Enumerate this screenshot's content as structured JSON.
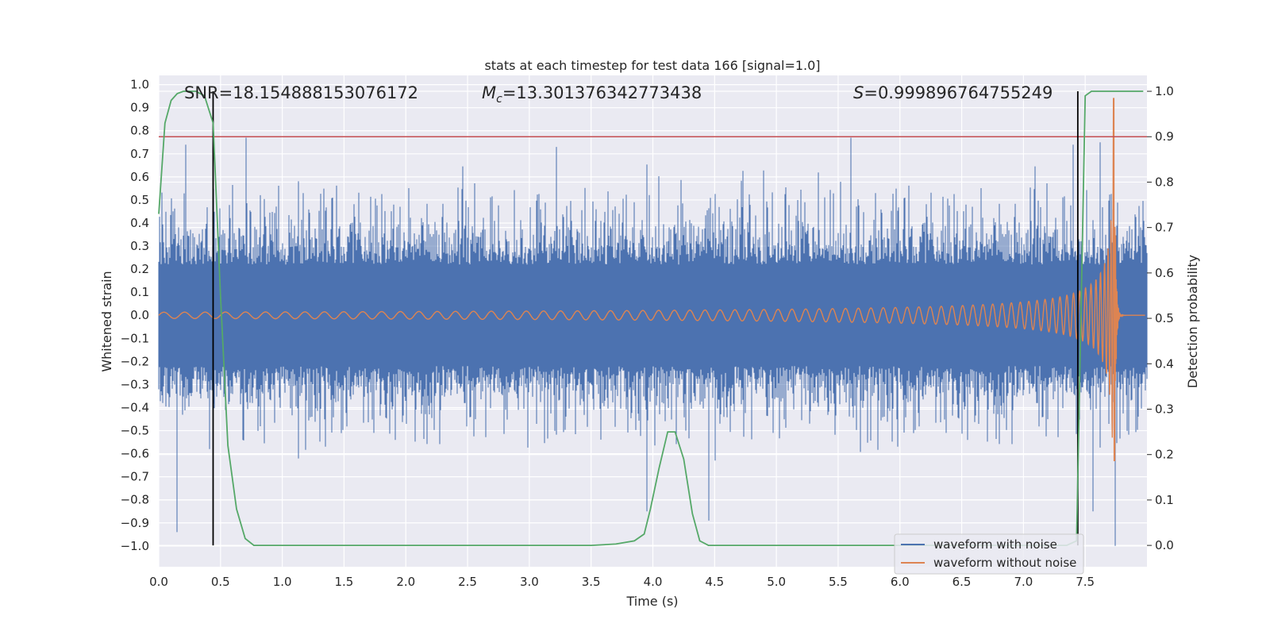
{
  "chart_data": {
    "type": "line",
    "title": "stats at each timestep for test data 166 [signal=1.0]",
    "xlabel": "Time (s)",
    "ylabel": "Whitened strain",
    "y2label": "Detection probability",
    "xlim": [
      0.0,
      8.0
    ],
    "ylim": [
      -1.09,
      1.04
    ],
    "y2lim": [
      -0.047,
      1.035
    ],
    "xticks": [
      "0.0",
      "0.5",
      "1.0",
      "1.5",
      "2.0",
      "2.5",
      "3.0",
      "3.5",
      "4.0",
      "4.5",
      "5.0",
      "5.5",
      "6.0",
      "6.5",
      "7.0",
      "7.5"
    ],
    "yticks": [
      "1.0",
      "0.9",
      "0.8",
      "0.7",
      "0.6",
      "0.5",
      "0.4",
      "0.3",
      "0.2",
      "0.1",
      "0.0",
      "-0.1",
      "-0.2",
      "-0.3",
      "-0.4",
      "-0.5",
      "-0.6",
      "-0.7",
      "-0.8",
      "-0.9",
      "-1.0"
    ],
    "y2ticks": [
      "1.0",
      "0.9",
      "0.8",
      "0.7",
      "0.6",
      "0.5",
      "0.4",
      "0.3",
      "0.2",
      "0.1",
      "0.0"
    ],
    "annotations": {
      "snr": "SNR=18.154888153076172",
      "mc_symbol": "M",
      "mc_sub": "c",
      "mc_value": "=13.301376342773438",
      "s_symbol": "S",
      "s_value": "=0.999896764755249"
    },
    "threshold_probability": 0.9,
    "detection_lines_x": [
      0.44,
      7.44
    ],
    "colors": {
      "noise": "#4c72b0",
      "clean": "#dd8452",
      "probability": "#55a868",
      "threshold": "#c44e52",
      "detect": "#000000",
      "background": "#eaeaf2"
    },
    "series": [
      {
        "name": "waveform with noise",
        "description": "noise envelope, |amplitude| typically 0.3-0.5 with spikes to ~0.8 and down to ~-1.0",
        "spikes": [
          [
            0.15,
            -0.94
          ],
          [
            0.22,
            0.74
          ],
          [
            0.71,
            0.77
          ],
          [
            3.22,
            0.73
          ],
          [
            3.95,
            -0.85
          ],
          [
            4.45,
            -0.89
          ],
          [
            5.6,
            0.77
          ],
          [
            7.4,
            0.74
          ],
          [
            7.56,
            -0.85
          ],
          [
            7.62,
            0.75
          ],
          [
            7.74,
            -1.0
          ]
        ]
      },
      {
        "name": "waveform without noise",
        "description": "chirp: amplitude ~0.015 at t=0 growing to ~0.95 at merger t~7.74s, then ringdown",
        "merger_time": 7.74,
        "merger_peak": 0.94,
        "merger_trough": -0.63
      },
      {
        "name": "detection probability",
        "x": [
          0.0,
          0.05,
          0.1,
          0.15,
          0.2,
          0.3,
          0.37,
          0.44,
          0.5,
          0.56,
          0.63,
          0.7,
          0.77,
          1.0,
          2.0,
          3.0,
          3.5,
          3.7,
          3.85,
          3.93,
          3.98,
          4.05,
          4.12,
          4.18,
          4.25,
          4.32,
          4.38,
          4.45,
          5.0,
          6.0,
          7.0,
          7.35,
          7.43,
          7.5,
          7.55,
          7.6,
          7.7,
          7.8,
          7.97
        ],
        "values": [
          0.73,
          0.93,
          0.98,
          0.995,
          1.0,
          1.0,
          0.99,
          0.93,
          0.55,
          0.22,
          0.08,
          0.015,
          0.0,
          0.0,
          0.0,
          0.0,
          0.0,
          0.003,
          0.01,
          0.025,
          0.08,
          0.17,
          0.25,
          0.25,
          0.19,
          0.07,
          0.01,
          0.0,
          0.0,
          0.0,
          0.0,
          0.0,
          0.01,
          0.99,
          1.0,
          1.0,
          1.0,
          1.0,
          1.0
        ]
      }
    ],
    "legend": [
      "waveform with noise",
      "waveform without noise"
    ],
    "legend_position": "lower-right"
  }
}
